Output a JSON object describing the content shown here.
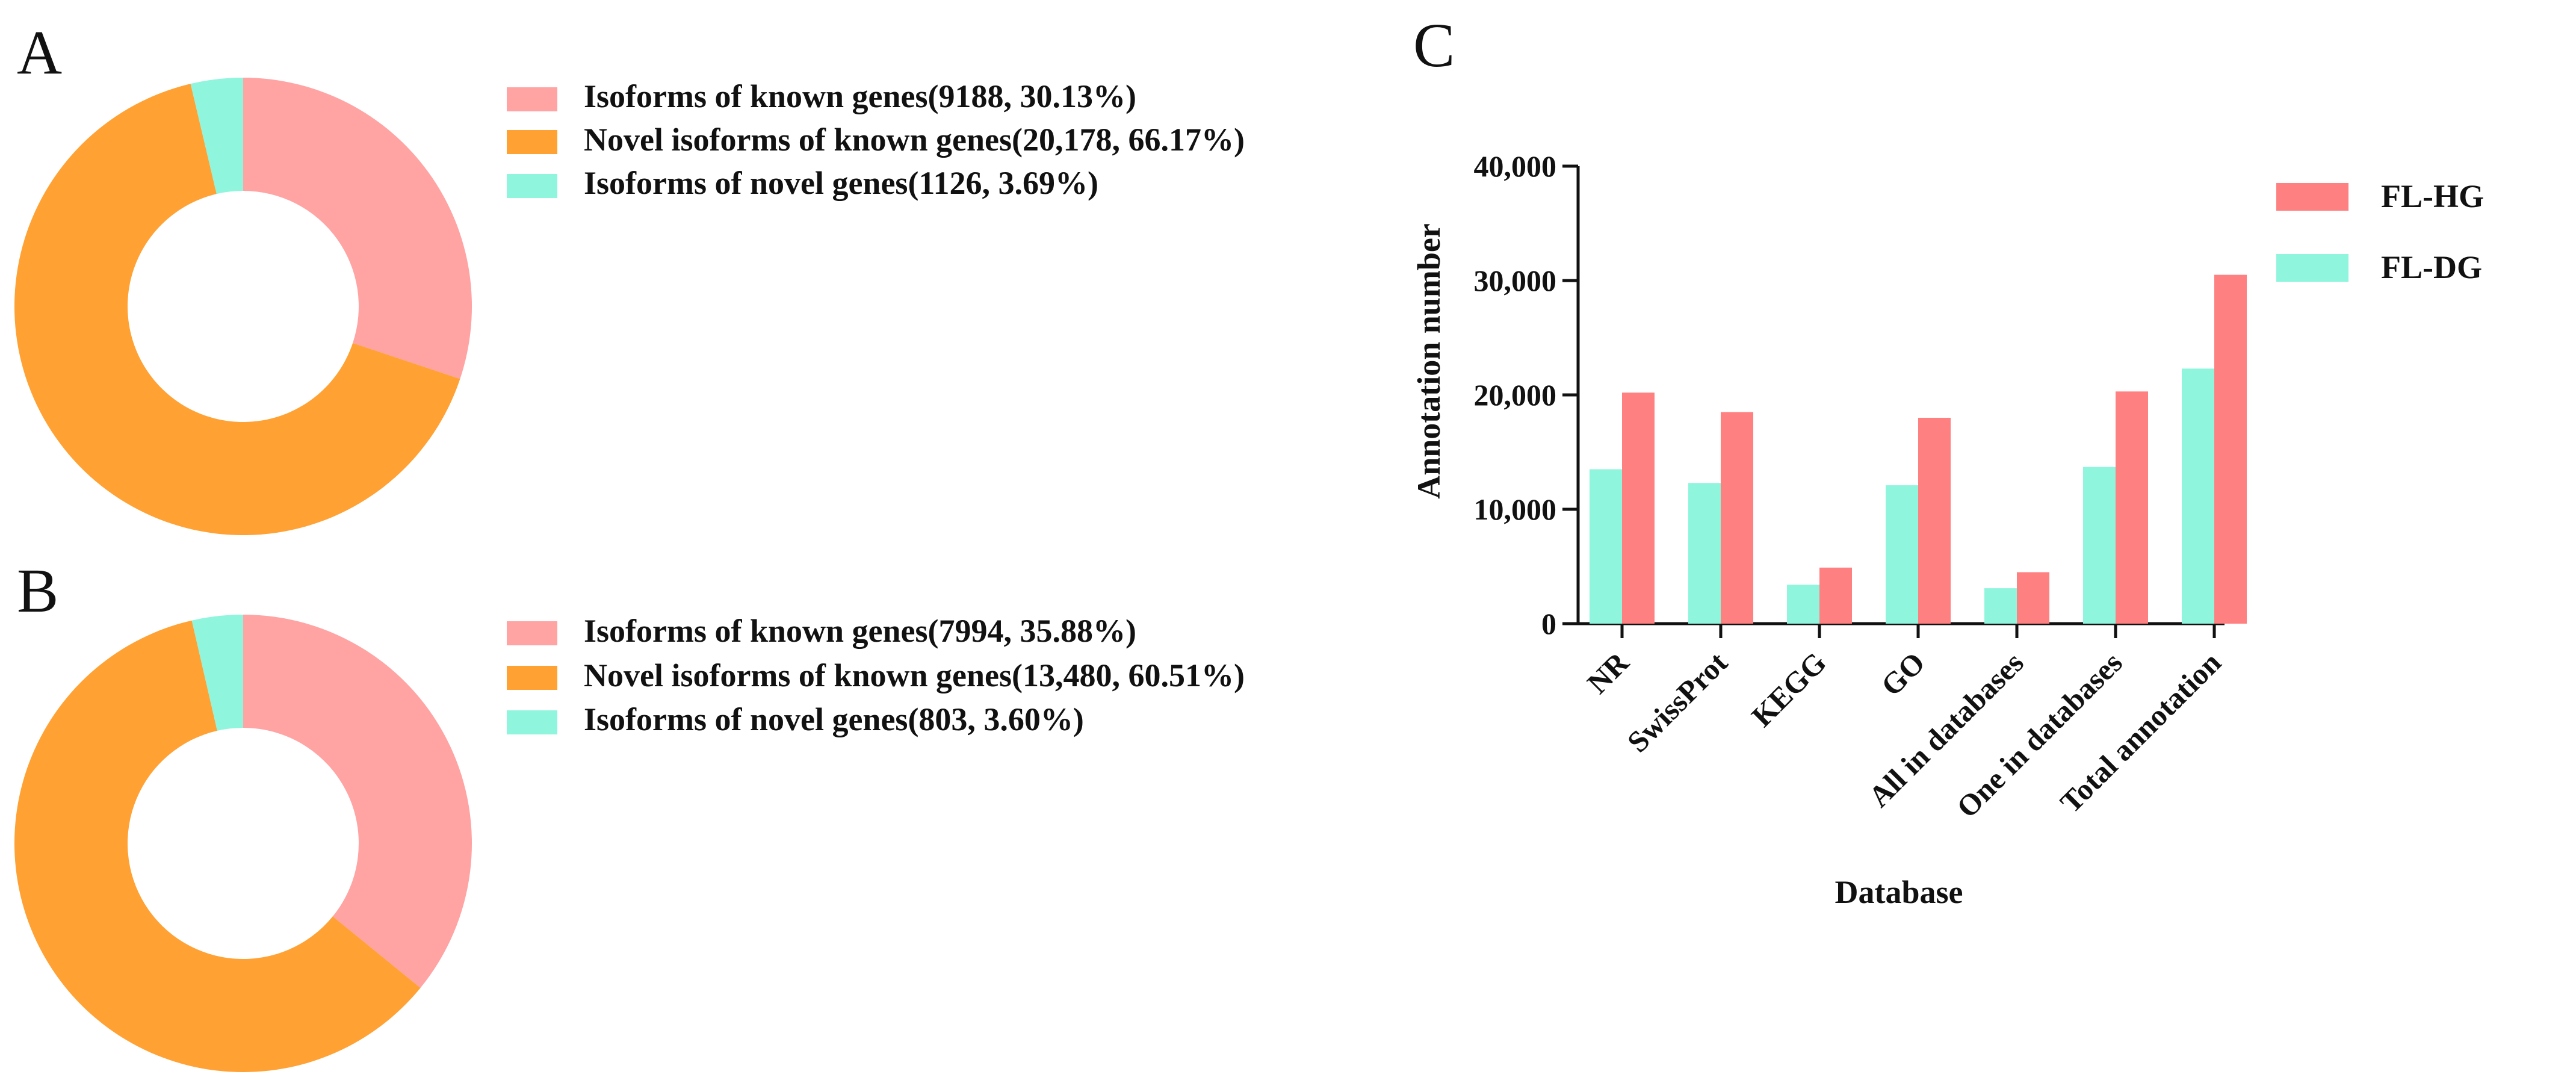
{
  "colors": {
    "known": "#ffa3a3",
    "novel_isoforms": "#ffa133",
    "novel_genes": "#8ff5dd",
    "fl_hg": "#ff8080",
    "fl_dg": "#8ff5dd",
    "axis": "#111111"
  },
  "chart_data": [
    {
      "type": "pie",
      "panel": "A",
      "donut": true,
      "slices": [
        {
          "label": "Isoforms of known genes(9188, 30.13%)",
          "value": 9188,
          "percent": 30.13,
          "color": "#ffa3a3"
        },
        {
          "label": "Novel isoforms of known genes(20,178, 66.17%)",
          "value": 20178,
          "percent": 66.17,
          "color": "#ffa133"
        },
        {
          "label": "Isoforms of novel genes(1126, 3.69%)",
          "value": 1126,
          "percent": 3.69,
          "color": "#8ff5dd"
        }
      ]
    },
    {
      "type": "pie",
      "panel": "B",
      "donut": true,
      "slices": [
        {
          "label": "Isoforms of known genes(7994, 35.88%)",
          "value": 7994,
          "percent": 35.88,
          "color": "#ffa3a3"
        },
        {
          "label": "Novel isoforms of known genes(13,480, 60.51%)",
          "value": 13480,
          "percent": 60.51,
          "color": "#ffa133"
        },
        {
          "label": "Isoforms of novel genes(803, 3.60%)",
          "value": 803,
          "percent": 3.6,
          "color": "#8ff5dd"
        }
      ]
    },
    {
      "type": "bar",
      "panel": "C",
      "title": "",
      "xlabel": "Database",
      "ylabel": "Annotation number",
      "ylim": [
        0,
        40000
      ],
      "yticks": [
        0,
        10000,
        20000,
        30000,
        40000
      ],
      "ytick_labels": [
        "0",
        "10,000",
        "20,000",
        "30,000",
        "40,000"
      ],
      "categories": [
        "NR",
        "SwissProt",
        "KEGG",
        "GO",
        "All in databases",
        "One in databases",
        "Total annotation"
      ],
      "series": [
        {
          "name": "FL-DG",
          "color": "#8ff5dd",
          "values": [
            13500,
            12300,
            3400,
            12100,
            3100,
            13700,
            22300
          ]
        },
        {
          "name": "FL-HG",
          "color": "#ff8080",
          "values": [
            20200,
            18500,
            4900,
            18000,
            4500,
            20300,
            30500
          ]
        }
      ],
      "legend_order": [
        "FL-HG",
        "FL-DG"
      ],
      "legend_position": "top-right",
      "grid": false
    }
  ]
}
